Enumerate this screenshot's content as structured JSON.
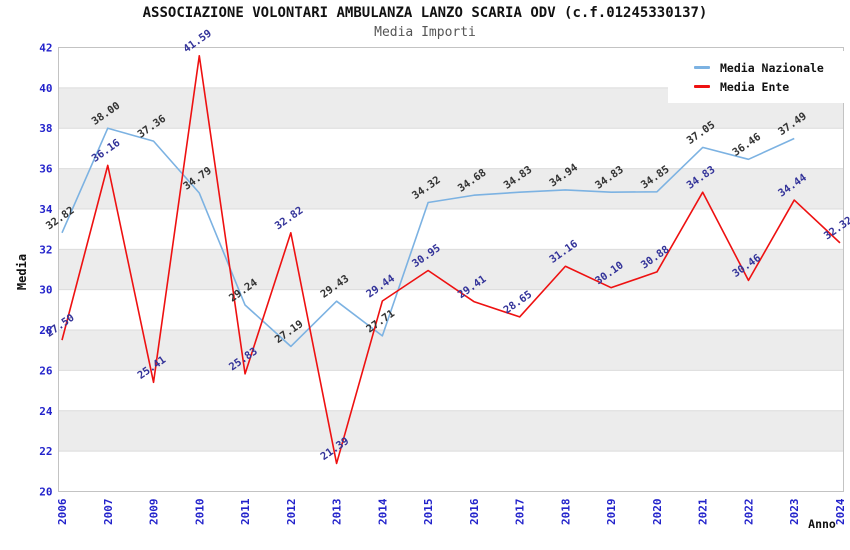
{
  "chart_data": {
    "type": "line",
    "title": "ASSOCIAZIONE VOLONTARI AMBULANZA LANZO SCARIA ODV (c.f.01245330137)",
    "subtitle": "Media Importi",
    "xlabel": "Anno",
    "ylabel": "Media",
    "categories": [
      "2006",
      "2007",
      "2009",
      "2010",
      "2011",
      "2012",
      "2013",
      "2014",
      "2015",
      "2016",
      "2017",
      "2018",
      "2019",
      "2020",
      "2021",
      "2022",
      "2023",
      "2024"
    ],
    "series": [
      {
        "name": "Media Nazionale",
        "color": "#7cb2e2",
        "label_color": "#333333",
        "values": [
          32.82,
          38.0,
          37.36,
          34.79,
          29.24,
          27.19,
          29.43,
          27.71,
          34.32,
          34.68,
          34.83,
          34.94,
          34.83,
          34.85,
          37.05,
          36.46,
          37.49,
          null
        ]
      },
      {
        "name": "Media Ente",
        "color": "#ee1111",
        "label_color": "#333399",
        "values": [
          27.5,
          36.16,
          25.41,
          41.59,
          25.83,
          32.82,
          21.39,
          29.44,
          30.95,
          29.41,
          28.65,
          31.16,
          30.1,
          30.88,
          34.83,
          30.46,
          34.44,
          32.32
        ]
      }
    ],
    "ylim": [
      20,
      42
    ],
    "yticks": [
      20,
      22,
      24,
      26,
      28,
      30,
      32,
      34,
      36,
      38,
      40,
      42
    ],
    "grid": true,
    "band_fill": "#ececec",
    "grid_color": "#dcdcdc",
    "border_color": "#c3c3c3",
    "tick_color": "#2323cb",
    "axis_title_color": "#111111",
    "legend_position": "top-right",
    "value_format_decimals": 2
  }
}
